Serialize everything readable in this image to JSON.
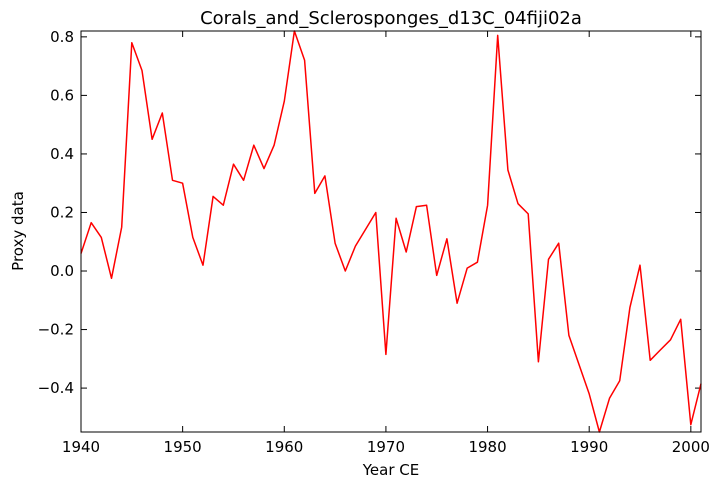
{
  "chart_data": {
    "type": "line",
    "title": "Corals_and_Sclerosponges_d13C_04fiji02a",
    "xlabel": "Year CE",
    "ylabel": "Proxy data",
    "xlim": [
      1940,
      2001
    ],
    "ylim": [
      -0.55,
      0.82
    ],
    "grid": false,
    "legend": "none",
    "x_ticks": [
      1940,
      1950,
      1960,
      1970,
      1980,
      1990,
      2000
    ],
    "x_tick_labels": [
      "1940",
      "1950",
      "1960",
      "1970",
      "1980",
      "1990",
      "2000"
    ],
    "y_ticks": [
      -0.4,
      -0.2,
      0.0,
      0.2,
      0.4,
      0.6,
      0.8
    ],
    "y_tick_labels": [
      "−0.4",
      "−0.2",
      "0.0",
      "0.2",
      "0.4",
      "0.6",
      "0.8"
    ],
    "series": [
      {
        "color": "#ff0000",
        "x": [
          1940,
          1941,
          1942,
          1943,
          1944,
          1945,
          1946,
          1947,
          1948,
          1949,
          1950,
          1951,
          1952,
          1953,
          1954,
          1955,
          1956,
          1957,
          1958,
          1959,
          1960,
          1961,
          1962,
          1963,
          1964,
          1965,
          1966,
          1967,
          1969,
          1970,
          1971,
          1972,
          1973,
          1974,
          1975,
          1976,
          1977,
          1978,
          1979,
          1980,
          1981,
          1982,
          1983,
          1984,
          1985,
          1986,
          1987,
          1988,
          1990,
          1991,
          1992,
          1993,
          1994,
          1995,
          1996,
          1997,
          1998,
          1999,
          2000,
          2001
        ],
        "y": [
          0.06,
          0.165,
          0.115,
          -0.025,
          0.15,
          0.78,
          0.685,
          0.45,
          0.54,
          0.31,
          0.3,
          0.115,
          0.02,
          0.255,
          0.225,
          0.365,
          0.31,
          0.43,
          0.35,
          0.43,
          0.58,
          0.82,
          0.72,
          0.265,
          0.325,
          0.095,
          0.0,
          0.085,
          0.2,
          -0.285,
          0.18,
          0.065,
          0.22,
          0.225,
          -0.015,
          0.11,
          -0.11,
          0.01,
          0.03,
          0.225,
          0.805,
          0.345,
          0.23,
          0.195,
          -0.31,
          0.04,
          0.095,
          -0.22,
          -0.42,
          -0.55,
          -0.435,
          -0.375,
          -0.125,
          0.02,
          -0.305,
          -0.27,
          -0.235,
          -0.165,
          -0.525,
          -0.385
        ]
      }
    ]
  }
}
